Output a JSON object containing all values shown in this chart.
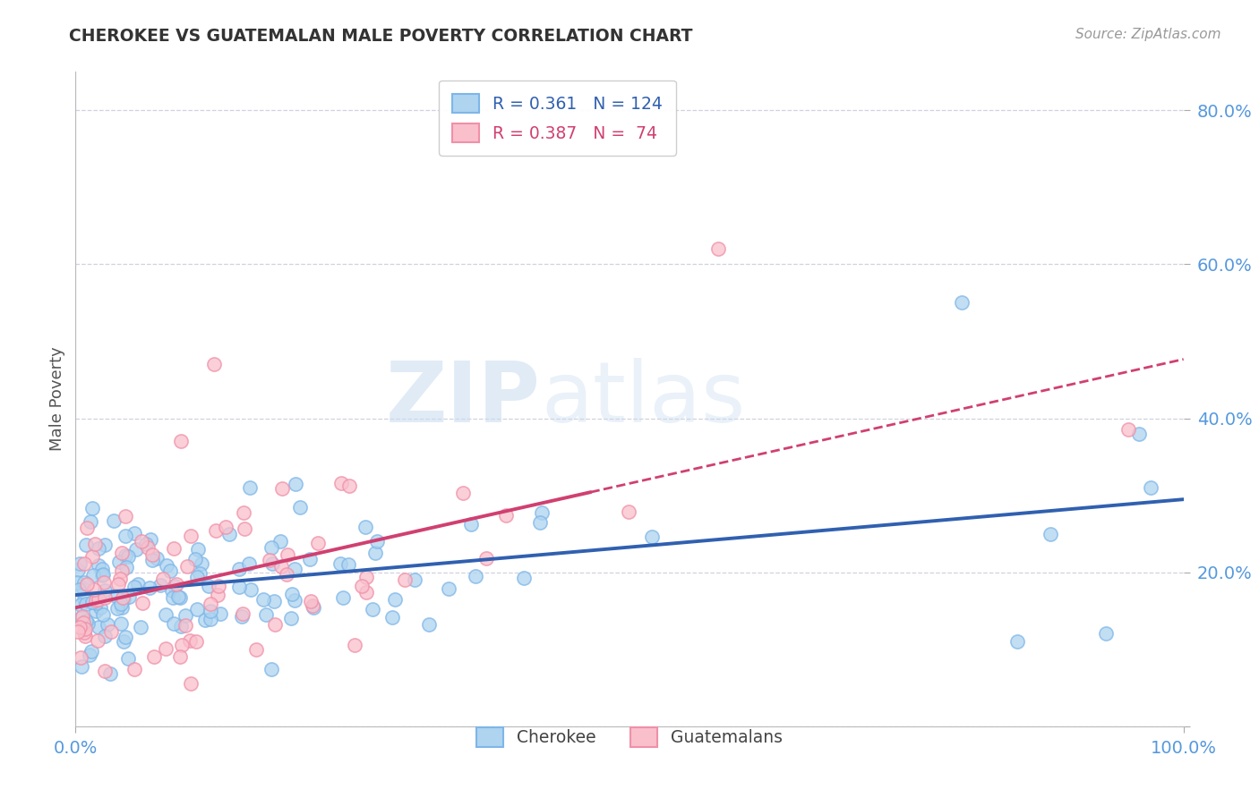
{
  "title": "CHEROKEE VS GUATEMALAN MALE POVERTY CORRELATION CHART",
  "source": "Source: ZipAtlas.com",
  "ylabel": "Male Poverty",
  "y_ticks": [
    0.0,
    0.2,
    0.4,
    0.6,
    0.8
  ],
  "y_tick_labels": [
    "",
    "20.0%",
    "40.0%",
    "60.0%",
    "80.0%"
  ],
  "x_range": [
    0.0,
    1.0
  ],
  "y_range": [
    0.0,
    0.85
  ],
  "cherokee_color_face": "#AED4F0",
  "cherokee_color_edge": "#7EB6E8",
  "guatemalan_color_face": "#F9C0CC",
  "guatemalan_color_edge": "#F090A8",
  "cherokee_line_color": "#3060B0",
  "guatemalan_line_color": "#D04070",
  "cherokee_R": 0.361,
  "cherokee_N": 124,
  "guatemalan_R": 0.387,
  "guatemalan_N": 74,
  "watermark_zip": "ZIP",
  "watermark_atlas": "atlas",
  "background_color": "#FFFFFF",
  "grid_color": "#CCCCDD",
  "legend_label_cherokee": "Cherokee",
  "legend_label_guatemalan": "Guatemalans",
  "tick_label_color": "#5599DD",
  "title_color": "#333333",
  "source_color": "#999999",
  "ylabel_color": "#555555"
}
